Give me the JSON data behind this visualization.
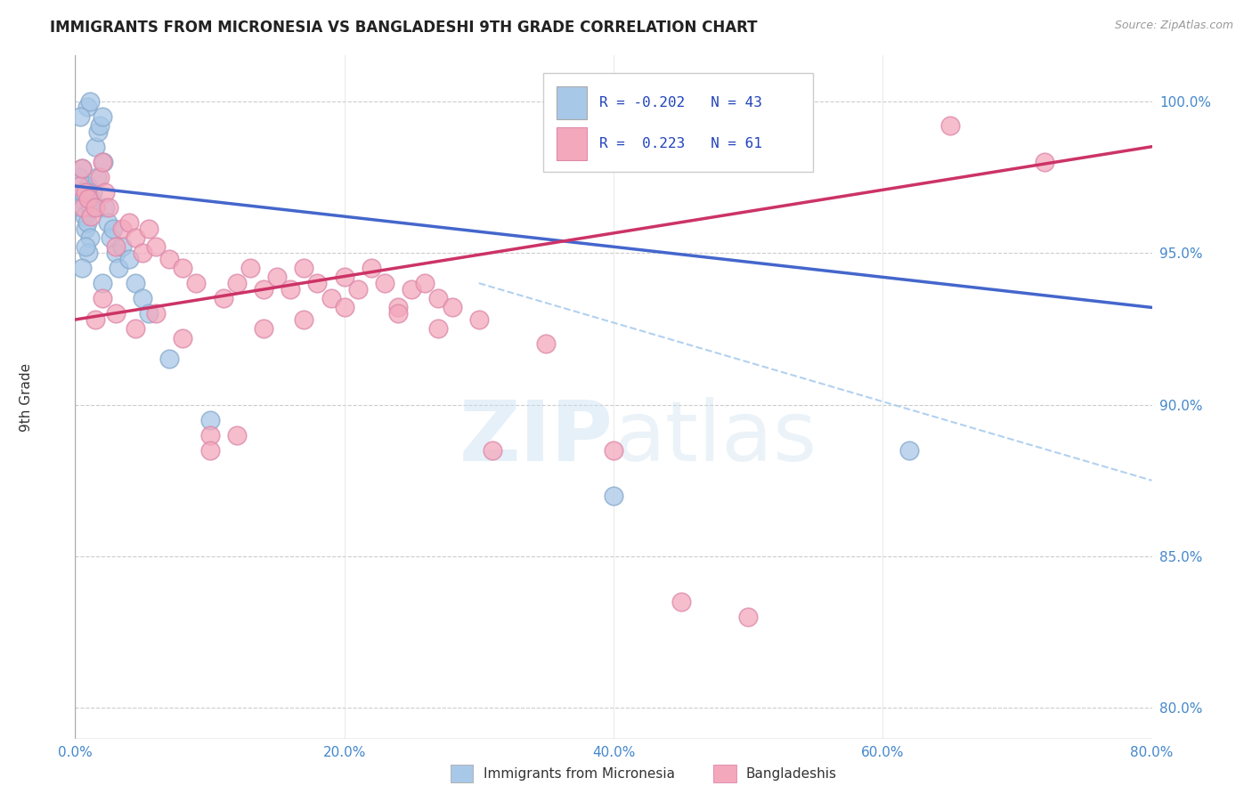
{
  "title": "IMMIGRANTS FROM MICRONESIA VS BANGLADESHI 9TH GRADE CORRELATION CHART",
  "source": "Source: ZipAtlas.com",
  "ylabel": "9th Grade",
  "xlim": [
    0.0,
    80.0
  ],
  "ylim": [
    79.0,
    101.5
  ],
  "yticks": [
    80.0,
    85.0,
    90.0,
    95.0,
    100.0
  ],
  "xticks": [
    0.0,
    20.0,
    40.0,
    60.0,
    80.0
  ],
  "blue_color": "#a8c8e8",
  "pink_color": "#f4a8bc",
  "trend_blue_color": "#4466cc",
  "trend_pink_color": "#cc3366",
  "dashed_blue_color": "#aaccee",
  "watermark_color": "#d0e8f8",
  "blue_r": -0.202,
  "pink_r": 0.223,
  "blue_n": 43,
  "pink_n": 61,
  "blue_trend_y0": 97.2,
  "blue_trend_y1": 93.2,
  "pink_trend_y0": 92.8,
  "pink_trend_y1": 98.5,
  "dashed_y0": 94.0,
  "dashed_y1": 87.5,
  "blue_x": [
    0.2,
    0.3,
    0.4,
    0.5,
    0.6,
    0.7,
    0.8,
    0.9,
    1.0,
    1.1,
    1.2,
    1.3,
    1.4,
    1.5,
    1.6,
    1.7,
    1.8,
    2.0,
    2.1,
    2.2,
    2.4,
    2.6,
    2.8,
    3.0,
    3.2,
    3.5,
    4.0,
    4.5,
    5.0,
    1.0,
    0.5,
    0.8,
    1.2,
    0.6,
    0.9,
    1.1,
    0.4,
    2.0,
    10.0,
    5.5,
    7.0,
    40.0,
    62.0
  ],
  "blue_y": [
    96.8,
    97.5,
    96.5,
    97.8,
    97.0,
    96.2,
    95.8,
    96.0,
    97.2,
    95.5,
    96.8,
    97.0,
    96.5,
    98.5,
    97.5,
    99.0,
    99.2,
    99.5,
    98.0,
    96.5,
    96.0,
    95.5,
    95.8,
    95.0,
    94.5,
    95.2,
    94.8,
    94.0,
    93.5,
    95.0,
    94.5,
    95.2,
    96.5,
    97.0,
    99.8,
    100.0,
    99.5,
    94.0,
    89.5,
    93.0,
    91.5,
    87.0,
    88.5
  ],
  "pink_x": [
    0.3,
    0.5,
    0.6,
    0.8,
    1.0,
    1.2,
    1.5,
    1.8,
    2.0,
    2.2,
    2.5,
    3.0,
    3.5,
    4.0,
    4.5,
    5.0,
    5.5,
    6.0,
    7.0,
    8.0,
    9.0,
    10.0,
    11.0,
    12.0,
    13.0,
    14.0,
    15.0,
    16.0,
    17.0,
    18.0,
    19.0,
    20.0,
    21.0,
    22.0,
    23.0,
    24.0,
    25.0,
    26.0,
    27.0,
    28.0,
    30.0,
    2.0,
    1.5,
    3.0,
    4.5,
    6.0,
    8.0,
    10.0,
    12.0,
    14.0,
    17.0,
    20.0,
    24.0,
    27.0,
    31.0,
    35.0,
    40.0,
    45.0,
    50.0,
    65.0,
    72.0
  ],
  "pink_y": [
    97.2,
    97.8,
    96.5,
    97.0,
    96.8,
    96.2,
    96.5,
    97.5,
    98.0,
    97.0,
    96.5,
    95.2,
    95.8,
    96.0,
    95.5,
    95.0,
    95.8,
    95.2,
    94.8,
    94.5,
    94.0,
    89.0,
    93.5,
    94.0,
    94.5,
    93.8,
    94.2,
    93.8,
    94.5,
    94.0,
    93.5,
    94.2,
    93.8,
    94.5,
    94.0,
    93.2,
    93.8,
    94.0,
    93.5,
    93.2,
    92.8,
    93.5,
    92.8,
    93.0,
    92.5,
    93.0,
    92.2,
    88.5,
    89.0,
    92.5,
    92.8,
    93.2,
    93.0,
    92.5,
    88.5,
    92.0,
    88.5,
    83.5,
    83.0,
    99.2,
    98.0
  ]
}
